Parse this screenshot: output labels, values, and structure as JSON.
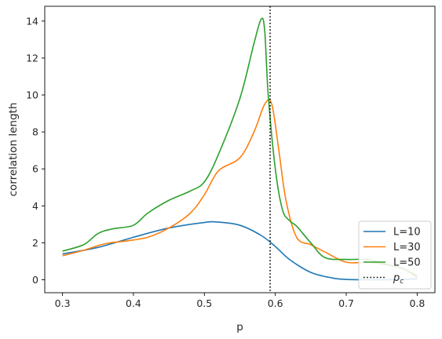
{
  "chart_data": {
    "type": "line",
    "title": "",
    "xlabel": "p",
    "ylabel": "correlation length",
    "xlim": [
      0.275,
      0.825
    ],
    "ylim": [
      -0.7,
      14.8
    ],
    "xticks": [
      0.3,
      0.4,
      0.5,
      0.6,
      0.7,
      0.8
    ],
    "xtick_labels": [
      "0.3",
      "0.4",
      "0.5",
      "0.6",
      "0.7",
      "0.8"
    ],
    "yticks": [
      0,
      2,
      4,
      6,
      8,
      10,
      12,
      14
    ],
    "ytick_labels": [
      "0",
      "2",
      "4",
      "6",
      "8",
      "10",
      "12",
      "14"
    ],
    "grid": false,
    "legend_position": "lower-right",
    "series": [
      {
        "name": "L=10",
        "color": "#1f77b4",
        "x": [
          0.3,
          0.35,
          0.4,
          0.45,
          0.5,
          0.52,
          0.55,
          0.58,
          0.6,
          0.62,
          0.65,
          0.68,
          0.7,
          0.73,
          0.75,
          0.78,
          0.8
        ],
        "y": [
          1.4,
          1.75,
          2.3,
          2.8,
          3.1,
          3.12,
          2.95,
          2.4,
          1.8,
          1.1,
          0.4,
          0.1,
          0.02,
          0.0,
          0.0,
          0.02,
          0.05
        ]
      },
      {
        "name": "L=30",
        "color": "#ff7f0e",
        "x": [
          0.3,
          0.33,
          0.36,
          0.39,
          0.42,
          0.45,
          0.48,
          0.5,
          0.52,
          0.55,
          0.57,
          0.585,
          0.595,
          0.605,
          0.615,
          0.63,
          0.65,
          0.67,
          0.7,
          0.73,
          0.75,
          0.78,
          0.8
        ],
        "y": [
          1.3,
          1.6,
          1.95,
          2.1,
          2.3,
          2.8,
          3.6,
          4.6,
          5.9,
          6.6,
          8.0,
          9.5,
          9.5,
          7.0,
          4.3,
          2.3,
          1.9,
          1.5,
          0.95,
          0.95,
          0.85,
          0.6,
          0.1
        ]
      },
      {
        "name": "L=50",
        "color": "#2ca02c",
        "x": [
          0.3,
          0.33,
          0.35,
          0.37,
          0.4,
          0.42,
          0.45,
          0.48,
          0.5,
          0.52,
          0.55,
          0.57,
          0.58,
          0.585,
          0.59,
          0.6,
          0.61,
          0.62,
          0.63,
          0.65,
          0.67,
          0.7,
          0.73,
          0.75,
          0.78,
          0.8
        ],
        "y": [
          1.55,
          1.9,
          2.5,
          2.75,
          2.95,
          3.6,
          4.3,
          4.8,
          5.3,
          6.8,
          9.8,
          12.8,
          14.1,
          13.5,
          10.0,
          6.0,
          3.8,
          3.2,
          2.9,
          2.0,
          1.2,
          1.1,
          1.1,
          0.9,
          0.6,
          0.2
        ]
      }
    ],
    "reference_line": {
      "name": "p_c",
      "legend_label_main": "p",
      "legend_label_sub": "c",
      "x": 0.5927,
      "color": "#000000",
      "style": "dotted"
    }
  }
}
